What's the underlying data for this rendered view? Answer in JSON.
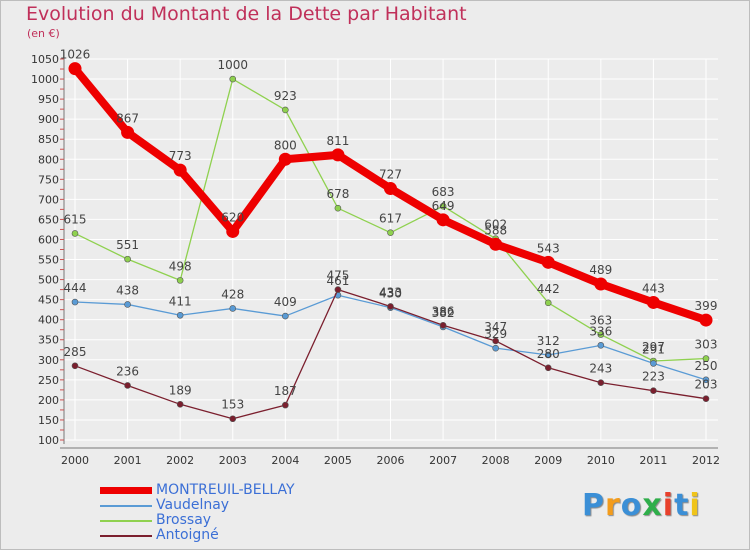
{
  "header": {
    "title": "Evolution du Montant de la Dette par Habitant",
    "unit": "(en €)"
  },
  "logo": {
    "text": "Proxiti",
    "colors": [
      "#3b8fd6",
      "#f39c1c",
      "#3b8fd6",
      "#2fae4a",
      "#e8402b",
      "#3b8fd6",
      "#f0c419"
    ]
  },
  "chart_data": {
    "type": "line",
    "title": "Evolution du Montant de la Dette par Habitant",
    "ylabel": "(en €)",
    "xlabel": "",
    "ylim": [
      100,
      1050
    ],
    "yticks": [
      100,
      150,
      200,
      250,
      300,
      350,
      400,
      450,
      500,
      550,
      600,
      650,
      700,
      750,
      800,
      850,
      900,
      950,
      1000,
      1050
    ],
    "grid": true,
    "legend_position": "bottom-left",
    "x": [
      "2000",
      "2001",
      "2002",
      "2003",
      "2004",
      "2005",
      "2006",
      "2007",
      "2008",
      "2009",
      "2010",
      "2011",
      "2012"
    ],
    "series": [
      {
        "name": "MONTREUIL-BELLAY",
        "color": "#ee0000",
        "values": [
          1026,
          867,
          773,
          620,
          800,
          811,
          727,
          649,
          588,
          543,
          489,
          443,
          399
        ]
      },
      {
        "name": "Vaudelnay",
        "color": "#5a9bd5",
        "values": [
          444,
          438,
          411,
          428,
          409,
          461,
          430,
          382,
          329,
          312,
          336,
          291,
          250
        ]
      },
      {
        "name": "Brossay",
        "color": "#8fd14f",
        "values": [
          615,
          551,
          498,
          1000,
          923,
          678,
          617,
          683,
          602,
          442,
          363,
          297,
          303
        ]
      },
      {
        "name": "Antoigné",
        "color": "#7b1f2e",
        "values": [
          285,
          236,
          189,
          153,
          187,
          475,
          433,
          386,
          347,
          280,
          243,
          223,
          203
        ]
      }
    ]
  }
}
